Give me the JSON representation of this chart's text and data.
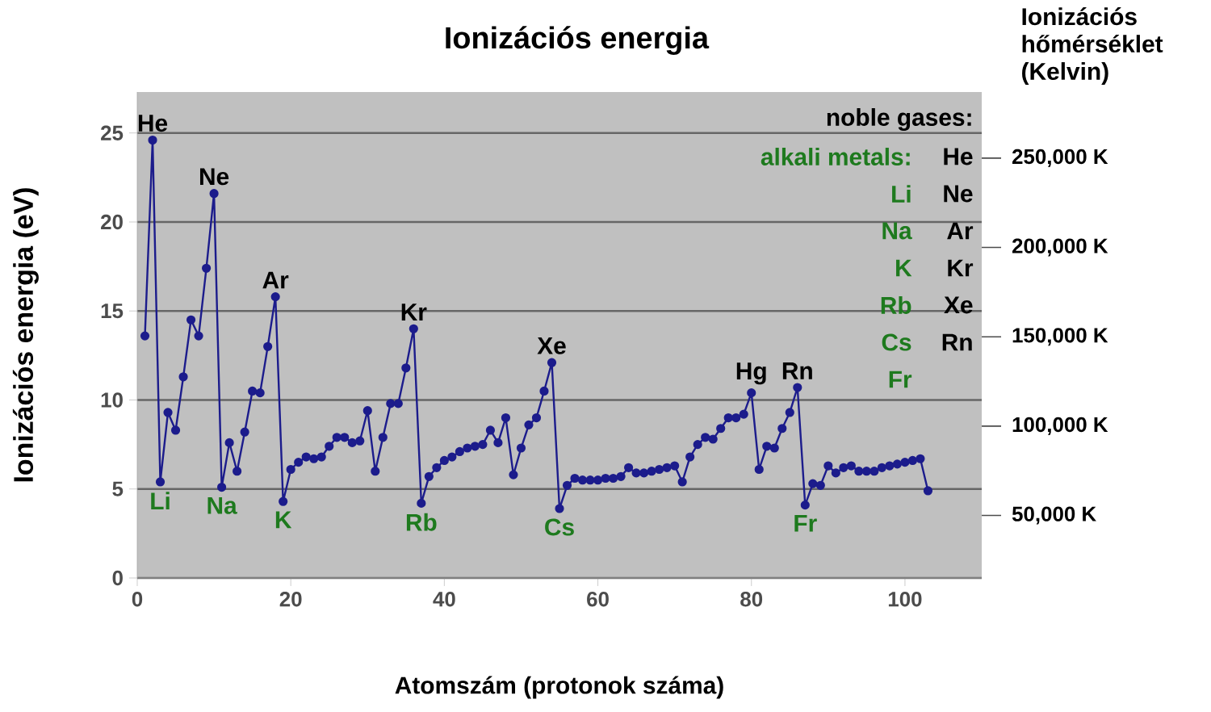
{
  "chart_data": {
    "type": "line",
    "title": "Ionizációs energia",
    "xlabel": "Atomszám (protonok száma)",
    "ylabel": "Ionizációs energia (eV)",
    "y2label": "Ionizációs hőmérséklet (Kelvin)",
    "x": [
      1,
      2,
      3,
      4,
      5,
      6,
      7,
      8,
      9,
      10,
      11,
      12,
      13,
      14,
      15,
      16,
      17,
      18,
      19,
      20,
      21,
      22,
      23,
      24,
      25,
      26,
      27,
      28,
      29,
      30,
      31,
      32,
      33,
      34,
      35,
      36,
      37,
      38,
      39,
      40,
      41,
      42,
      43,
      44,
      45,
      46,
      47,
      48,
      49,
      50,
      51,
      52,
      53,
      54,
      55,
      56,
      57,
      58,
      59,
      60,
      61,
      62,
      63,
      64,
      65,
      66,
      67,
      68,
      69,
      70,
      71,
      72,
      73,
      74,
      75,
      76,
      77,
      78,
      79,
      80,
      81,
      82,
      83,
      84,
      85,
      86,
      87,
      88,
      89,
      90,
      91,
      92,
      93,
      94,
      95,
      96,
      97,
      98,
      99,
      100,
      101,
      102,
      103
    ],
    "series": [
      {
        "color": "#1c1c8c",
        "values": [
          13.6,
          24.6,
          5.4,
          9.3,
          8.3,
          11.3,
          14.5,
          13.6,
          17.4,
          21.6,
          5.1,
          7.6,
          6.0,
          8.2,
          10.5,
          10.4,
          13.0,
          15.8,
          4.3,
          6.1,
          6.5,
          6.8,
          6.7,
          6.8,
          7.4,
          7.9,
          7.9,
          7.6,
          7.7,
          9.4,
          6.0,
          7.9,
          9.8,
          9.8,
          11.8,
          14.0,
          4.2,
          5.7,
          6.2,
          6.6,
          6.8,
          7.1,
          7.3,
          7.4,
          7.5,
          8.3,
          7.6,
          9.0,
          5.8,
          7.3,
          8.6,
          9.0,
          10.5,
          12.1,
          3.9,
          5.2,
          5.6,
          5.5,
          5.5,
          5.5,
          5.6,
          5.6,
          5.7,
          6.2,
          5.9,
          5.9,
          6.0,
          6.1,
          6.2,
          6.3,
          5.4,
          6.8,
          7.5,
          7.9,
          7.8,
          8.4,
          9.0,
          9.0,
          9.2,
          10.4,
          6.1,
          7.4,
          7.3,
          8.4,
          9.3,
          10.7,
          4.1,
          5.3,
          5.2,
          6.3,
          5.9,
          6.2,
          6.3,
          6.0,
          6.0,
          6.0,
          6.2,
          6.3,
          6.4,
          6.5,
          6.6,
          6.7,
          4.9
        ]
      }
    ],
    "marker": "circle",
    "grid": "y",
    "xlim": [
      0,
      110
    ],
    "xticks": [
      0,
      20,
      40,
      60,
      80,
      100
    ],
    "ylim": [
      0,
      27.3
    ],
    "yticks": [
      0,
      5,
      10,
      15,
      20,
      25
    ],
    "y2lim": [
      15000,
      287000
    ],
    "y2ticks": [
      {
        "value": 50000,
        "label": "50,000 K"
      },
      {
        "value": 100000,
        "label": "100,000 K"
      },
      {
        "value": 150000,
        "label": "150,000 K"
      },
      {
        "value": 200000,
        "label": "200,000 K"
      },
      {
        "value": 250000,
        "label": "250,000 K"
      }
    ],
    "annotations": [
      {
        "text": "He",
        "x": 2,
        "y": 24.6
      },
      {
        "text": "Li",
        "x": 3,
        "y": 5.4
      },
      {
        "text": "Ne",
        "x": 10,
        "y": 21.6
      },
      {
        "text": "Na",
        "x": 11,
        "y": 5.1
      },
      {
        "text": "Ar",
        "x": 18,
        "y": 15.8
      },
      {
        "text": "K",
        "x": 19,
        "y": 4.3
      },
      {
        "text": "Kr",
        "x": 36,
        "y": 14.0
      },
      {
        "text": "Rb",
        "x": 37,
        "y": 4.2
      },
      {
        "text": "Xe",
        "x": 54,
        "y": 12.1
      },
      {
        "text": "Cs",
        "x": 55,
        "y": 3.9
      },
      {
        "text": "Hg",
        "x": 80,
        "y": 10.4
      },
      {
        "text": "Rn",
        "x": 86,
        "y": 10.7
      },
      {
        "text": "Fr",
        "x": 87,
        "y": 4.1
      },
      "noble gases:",
      "alkali metals:",
      "He",
      "Li",
      "Ne",
      "Na",
      "Ar",
      "K",
      "Kr",
      "Rb",
      "Xe",
      "Cs",
      "Rn",
      "Fr"
    ]
  }
}
